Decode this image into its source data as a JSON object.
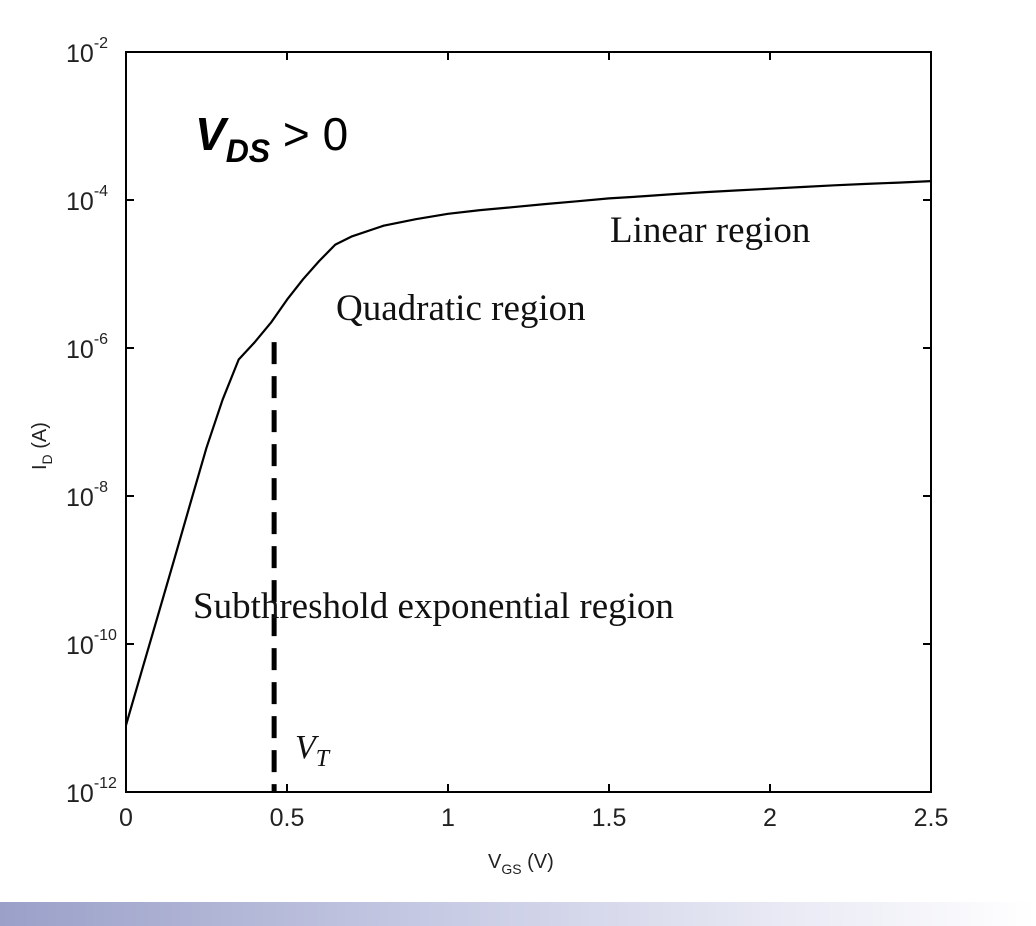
{
  "chart_data": {
    "type": "line",
    "x_scale": "linear",
    "y_scale": "log",
    "xlim": [
      0,
      2.5
    ],
    "ylim": [
      1e-12,
      0.01
    ],
    "x_ticks": [
      0,
      0.5,
      1,
      1.5,
      2,
      2.5
    ],
    "x_tick_labels": [
      "0",
      "0.5",
      "1",
      "1.5",
      "2",
      "2.5"
    ],
    "y_ticks": [
      1e-12,
      1e-10,
      1e-08,
      1e-06,
      0.0001,
      0.01
    ],
    "y_tick_labels": [
      {
        "base": "10",
        "exp": "-12"
      },
      {
        "base": "10",
        "exp": "-10"
      },
      {
        "base": "10",
        "exp": "-8"
      },
      {
        "base": "10",
        "exp": "-6"
      },
      {
        "base": "10",
        "exp": "-4"
      },
      {
        "base": "10",
        "exp": "-2"
      }
    ],
    "xlabel": {
      "main": "V",
      "sub": "GS",
      "tail": " (V)"
    },
    "ylabel": {
      "main": "I",
      "sub": "D",
      "tail": " (A)"
    },
    "grid": false,
    "series": [
      {
        "x": [
          0,
          0.05,
          0.1,
          0.15,
          0.2,
          0.25,
          0.3,
          0.35,
          0.4,
          0.45,
          0.5,
          0.55,
          0.6,
          0.65,
          0.7,
          0.8,
          0.9,
          1.0,
          1.1,
          1.2,
          1.3,
          1.4,
          1.5,
          1.6,
          1.7,
          1.8,
          1.9,
          2.0,
          2.1,
          2.2,
          2.3,
          2.4,
          2.5
        ],
        "y": [
          8e-12,
          4.5e-11,
          2.5e-10,
          1.4e-09,
          8e-09,
          4.5e-08,
          2e-07,
          7e-07,
          1.2e-06,
          2.2e-06,
          4.5e-06,
          8.5e-06,
          1.5e-05,
          2.5e-05,
          3.2e-05,
          4.5e-05,
          5.5e-05,
          6.5e-05,
          7.3e-05,
          8e-05,
          8.8e-05,
          9.6e-05,
          0.000105,
          0.000112,
          0.00012,
          0.000128,
          0.000135,
          0.000142,
          0.00015,
          0.000158,
          0.000165,
          0.000172,
          0.00018
        ]
      }
    ],
    "threshold": {
      "x": 0.46,
      "y_top": 1.2e-06,
      "label_main": "V",
      "label_sub": "T"
    },
    "annotations": {
      "vds": {
        "main": "V",
        "sub": "DS",
        "rest": " > 0"
      },
      "linear": "Linear region",
      "quadratic": "Quadratic region",
      "subthreshold": "Subthreshold exponential region"
    }
  }
}
